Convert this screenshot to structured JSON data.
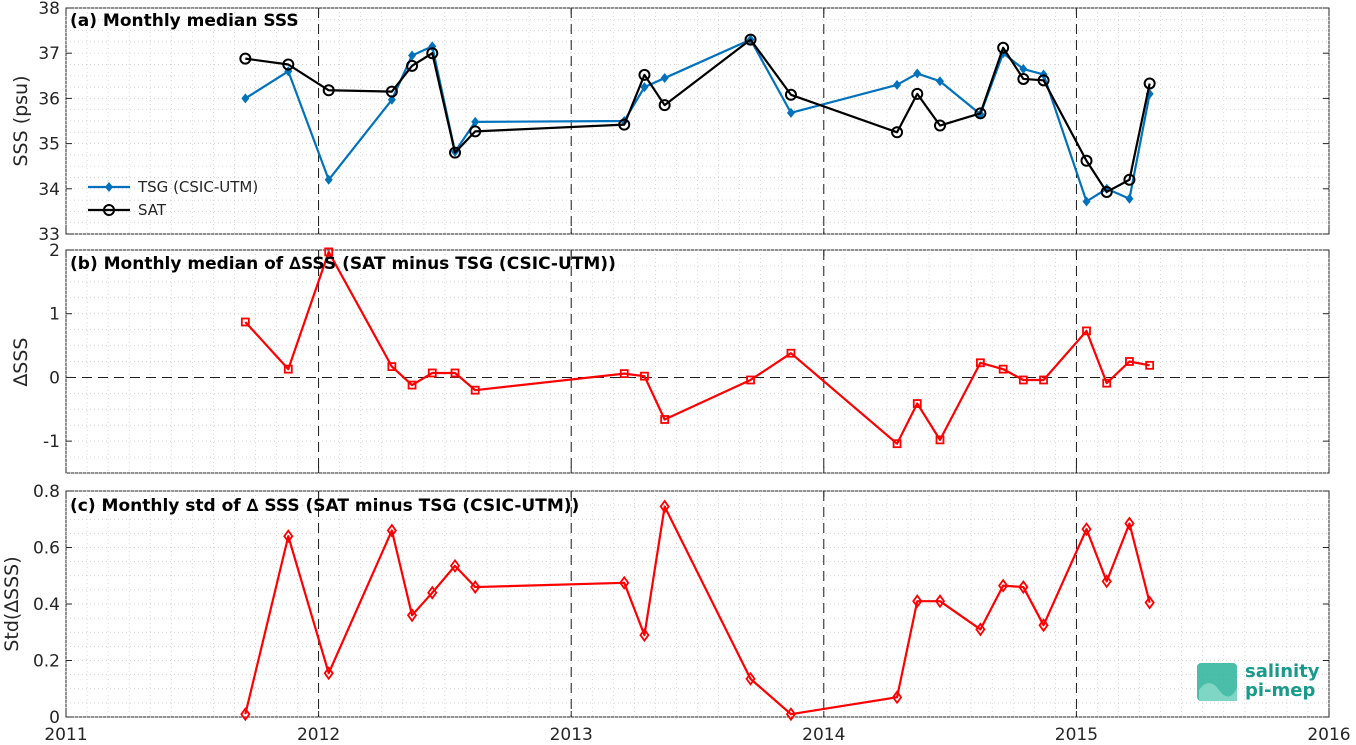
{
  "colors": {
    "tsg": "#0072BD",
    "sat": "#000000",
    "delta": "#FF0000",
    "grid": "#c8c8c8",
    "axis": "#262626",
    "logo": "#1a9a8a"
  },
  "x_axis": {
    "range": [
      2011.0,
      2016.0
    ],
    "ticks": [
      "2011",
      "2012",
      "2013",
      "2014",
      "2015",
      "2016"
    ]
  },
  "logo": {
    "line1": "salinity",
    "line2": "pi-mep"
  },
  "chart_data": [
    {
      "type": "line",
      "title": "(a) Monthly median SSS",
      "ylabel": "SSS (psu)",
      "ylim": [
        33,
        38
      ],
      "yticks": [
        "33",
        "34",
        "35",
        "36",
        "37",
        "38"
      ],
      "grid": true,
      "legend_position": "lower-left",
      "series": [
        {
          "name": "TSG (CSIC-UTM)",
          "marker": "diamond-filled",
          "x": [
            2011.71,
            2011.88,
            2012.04,
            2012.29,
            2012.37,
            2012.45,
            2012.54,
            2012.62,
            2013.21,
            2013.29,
            2013.37,
            2013.71,
            2013.87,
            2014.29,
            2014.37,
            2014.46,
            2014.62,
            2014.71,
            2014.79,
            2014.87,
            2015.04,
            2015.12,
            2015.21,
            2015.29
          ],
          "y": [
            36.0,
            36.6,
            34.2,
            35.97,
            36.95,
            37.15,
            34.82,
            35.48,
            35.5,
            36.25,
            36.45,
            37.3,
            35.68,
            36.3,
            36.55,
            36.38,
            35.65,
            37.0,
            36.65,
            36.53,
            33.72,
            34.0,
            33.78,
            36.1
          ]
        },
        {
          "name": "SAT",
          "marker": "circle-open",
          "x": [
            2011.71,
            2011.88,
            2012.04,
            2012.29,
            2012.37,
            2012.45,
            2012.54,
            2012.62,
            2013.21,
            2013.29,
            2013.37,
            2013.71,
            2013.87,
            2014.29,
            2014.37,
            2014.46,
            2014.62,
            2014.71,
            2014.79,
            2014.87,
            2015.04,
            2015.12,
            2015.21,
            2015.29
          ],
          "y": [
            36.88,
            36.75,
            36.18,
            36.15,
            36.72,
            37.0,
            34.8,
            35.27,
            35.42,
            36.52,
            35.85,
            37.3,
            36.08,
            35.25,
            36.1,
            35.4,
            35.67,
            37.12,
            36.43,
            36.4,
            34.62,
            33.93,
            34.2,
            36.33
          ]
        }
      ]
    },
    {
      "type": "line",
      "title": "(b) Monthly median of ∆SSS (SAT minus TSG (CSIC-UTM))",
      "ylabel": "∆SSS",
      "ylim": [
        -1.5,
        2
      ],
      "yticks": [
        "-1",
        "0",
        "1",
        "2"
      ],
      "ytick_values": [
        -1,
        0,
        1,
        2
      ],
      "grid": true,
      "reference_line": 0,
      "series": [
        {
          "marker": "square-open",
          "x": [
            2011.71,
            2011.88,
            2012.04,
            2012.29,
            2012.37,
            2012.45,
            2012.54,
            2012.62,
            2013.21,
            2013.29,
            2013.37,
            2013.71,
            2013.87,
            2014.29,
            2014.37,
            2014.46,
            2014.62,
            2014.71,
            2014.79,
            2014.87,
            2015.04,
            2015.12,
            2015.21,
            2015.29
          ],
          "y": [
            0.87,
            0.13,
            1.97,
            0.17,
            -0.12,
            0.07,
            0.07,
            -0.2,
            0.06,
            0.02,
            -0.66,
            -0.04,
            0.38,
            -1.04,
            -0.41,
            -0.98,
            0.23,
            0.13,
            -0.04,
            -0.04,
            0.73,
            -0.09,
            0.25,
            0.19
          ]
        }
      ]
    },
    {
      "type": "line",
      "title": "(c) Monthly std of ∆ SSS (SAT minus TSG (CSIC-UTM))",
      "ylabel": "Std(∆SSS)",
      "ylim": [
        0,
        0.8
      ],
      "yticks": [
        "0",
        "0.2",
        "0.4",
        "0.6",
        "0.8"
      ],
      "ytick_values": [
        0,
        0.2,
        0.4,
        0.6,
        0.8
      ],
      "grid": true,
      "series": [
        {
          "marker": "diamond-open",
          "x": [
            2011.71,
            2011.88,
            2012.04,
            2012.29,
            2012.37,
            2012.45,
            2012.54,
            2012.62,
            2013.21,
            2013.29,
            2013.37,
            2013.71,
            2013.87,
            2014.29,
            2014.37,
            2014.46,
            2014.62,
            2014.71,
            2014.79,
            2014.87,
            2015.04,
            2015.12,
            2015.21,
            2015.29
          ],
          "y": [
            0.01,
            0.64,
            0.155,
            0.66,
            0.36,
            0.44,
            0.535,
            0.46,
            0.475,
            0.29,
            0.745,
            0.135,
            0.01,
            0.07,
            0.41,
            0.41,
            0.31,
            0.465,
            0.46,
            0.325,
            0.665,
            0.48,
            0.685,
            0.405
          ]
        }
      ]
    }
  ]
}
